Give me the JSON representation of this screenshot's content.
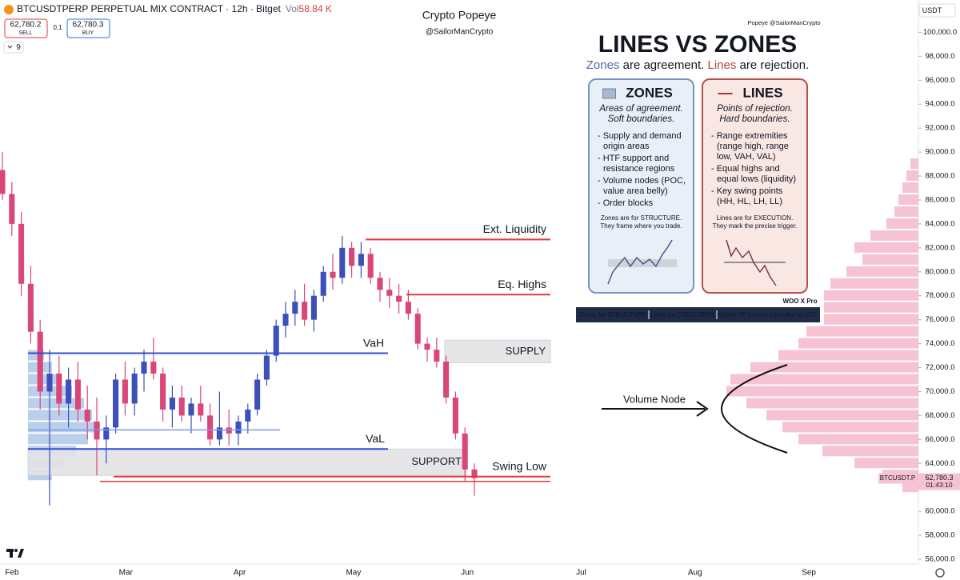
{
  "header": {
    "symbol": "BTCUSDTPERP PERPETUAL MIX CONTRACT · 12h · Bitget",
    "vol_label": "Vol",
    "vol_value": "58.84 K",
    "sell_price": "62,780.2",
    "sell_label": "SELL",
    "spread": "0.1",
    "buy_price": "62,780.3",
    "buy_label": "BUY",
    "indicator_count": "9",
    "currency": "USDT"
  },
  "watermark": {
    "name": "Crypto Popeye",
    "handle": "@SailorManCrypto"
  },
  "annotations": {
    "volume_node": "Volume Node"
  },
  "infographic": {
    "credit": "Popeye @SailorManCrypto",
    "title": "LINES VS ZONES",
    "subtitle": [
      "Zones",
      " are agreement. ",
      "Lines",
      " are rejection."
    ],
    "cards": [
      {
        "title": "ZONES",
        "tagline": [
          "Areas of agreement.",
          "Soft boundaries."
        ],
        "bullets": [
          [
            "- Supply and demand",
            "origin areas"
          ],
          [
            "- HTF support and",
            "resistance regions"
          ],
          [
            "- Volume nodes (POC,",
            "value area belly)"
          ],
          [
            "- Order blocks"
          ]
        ],
        "footer": [
          "Zones are for STRUCTURE.",
          "They frame where you trade."
        ]
      },
      {
        "title": "LINES",
        "tagline": [
          "Points of rejection.",
          "Hard boundaries."
        ],
        "bullets": [
          [
            "- Range extremities",
            "(range high, range",
            "low, VAH, VAL)"
          ],
          [
            "- Equal highs and",
            "equal lows (liquidity)"
          ],
          [
            "- Key swing points",
            "(HH, HL, LH, LL)"
          ]
        ],
        "footer": [
          "Lines are for EXECUTION.",
          "They mark the precise trigger."
        ]
      }
    ],
    "brand": "WOO X Pro",
    "bar": [
      "Zones for STRUCTURE",
      "Lines for EXECUTION",
      "Higher TF = more zone-like on LTF"
    ]
  },
  "chart_data": {
    "type": "candlestick",
    "up_color": "#3d4fb8",
    "down_color": "#d9467a",
    "ylim": [
      55600,
      102700
    ],
    "yticks": [
      {
        "value": 56000,
        "label": "56,000.0"
      },
      {
        "value": 58000,
        "label": "58,000.0"
      },
      {
        "value": 60000,
        "label": "60,000.0"
      },
      {
        "value": 62000,
        "label": "62,000.0"
      },
      {
        "value": 64000,
        "label": "64,000.0"
      },
      {
        "value": 66000,
        "label": "66,000.0"
      },
      {
        "value": 68000,
        "label": "68,000.0"
      },
      {
        "value": 70000,
        "label": "70,000.0"
      },
      {
        "value": 72000,
        "label": "72,000.0"
      },
      {
        "value": 74000,
        "label": "74,000.0"
      },
      {
        "value": 76000,
        "label": "76,000.0"
      },
      {
        "value": 78000,
        "label": "78,000.0"
      },
      {
        "value": 80000,
        "label": "80,000.0"
      },
      {
        "value": 82000,
        "label": "82,000.0"
      },
      {
        "value": 84000,
        "label": "84,000.0"
      },
      {
        "value": 86000,
        "label": "86,000.0"
      },
      {
        "value": 88000,
        "label": "88,000.0"
      },
      {
        "value": 90000,
        "label": "90,000.0"
      },
      {
        "value": 92000,
        "label": "92,000.0"
      },
      {
        "value": 94000,
        "label": "94,000.0"
      },
      {
        "value": 96000,
        "label": "96,000.0"
      },
      {
        "value": 98000,
        "label": "98,000.0"
      },
      {
        "value": 100000,
        "label": "100,000.0"
      }
    ],
    "x_ticks": [
      "Feb",
      "Mar",
      "Apr",
      "May",
      "Jun",
      "Jul",
      "Aug",
      "Sep"
    ],
    "candles": [
      [
        88500,
        90000,
        86000,
        86500
      ],
      [
        86500,
        87500,
        83000,
        84000
      ],
      [
        84000,
        85000,
        78000,
        79000
      ],
      [
        79000,
        80500,
        74000,
        75000
      ],
      [
        75000,
        76000,
        68500,
        70000
      ],
      [
        70000,
        73500,
        60500,
        71500
      ],
      [
        71500,
        73000,
        68000,
        69000
      ],
      [
        69000,
        72000,
        67000,
        71000
      ],
      [
        71000,
        72500,
        67500,
        68500
      ],
      [
        68500,
        70500,
        66000,
        67500
      ],
      [
        67500,
        69500,
        63000,
        66000
      ],
      [
        66000,
        68000,
        64000,
        67000
      ],
      [
        67000,
        71500,
        66500,
        71000
      ],
      [
        71000,
        72500,
        68000,
        69000
      ],
      [
        69000,
        72000,
        68000,
        71500
      ],
      [
        71500,
        73500,
        70000,
        72500
      ],
      [
        72500,
        74500,
        71000,
        71500
      ],
      [
        71500,
        72000,
        67500,
        68500
      ],
      [
        68500,
        70500,
        67000,
        69500
      ],
      [
        69500,
        70500,
        67500,
        68000
      ],
      [
        68000,
        69500,
        66500,
        69000
      ],
      [
        69000,
        70500,
        67500,
        68000
      ],
      [
        68000,
        69000,
        65500,
        66000
      ],
      [
        66000,
        70000,
        65500,
        67000
      ],
      [
        67000,
        68500,
        65500,
        66500
      ],
      [
        66500,
        68000,
        65500,
        67500
      ],
      [
        67500,
        69000,
        66500,
        68500
      ],
      [
        68500,
        71500,
        68000,
        71000
      ],
      [
        71000,
        73500,
        70500,
        73000
      ],
      [
        73000,
        76000,
        72500,
        75500
      ],
      [
        75500,
        77500,
        74500,
        76500
      ],
      [
        76500,
        78500,
        75500,
        77500
      ],
      [
        77500,
        79000,
        75500,
        76000
      ],
      [
        76000,
        78500,
        75000,
        78000
      ],
      [
        78000,
        80500,
        77500,
        80000
      ],
      [
        80000,
        81500,
        78500,
        79500
      ],
      [
        79500,
        83000,
        79000,
        82000
      ],
      [
        82000,
        82500,
        79500,
        80500
      ],
      [
        80500,
        82500,
        79500,
        81500
      ],
      [
        81500,
        82000,
        79000,
        79500
      ],
      [
        79500,
        80000,
        77500,
        78500
      ],
      [
        78500,
        79500,
        77000,
        78000
      ],
      [
        78000,
        79000,
        76500,
        77500
      ],
      [
        77500,
        78500,
        76000,
        76500
      ],
      [
        76500,
        77000,
        73500,
        74000
      ],
      [
        74000,
        74500,
        72500,
        73500
      ],
      [
        73500,
        74500,
        72000,
        72500
      ],
      [
        72500,
        73000,
        69000,
        69500
      ],
      [
        69500,
        70000,
        66000,
        66500
      ],
      [
        66500,
        67000,
        62500,
        63500
      ],
      [
        63500,
        64000,
        61300,
        62780
      ]
    ],
    "levels": [
      {
        "label": "Ext. Liquidity",
        "value": 82700,
        "color": "#e0393a"
      },
      {
        "label": "Eq. Highs",
        "value": 78100,
        "color": "#e0393a"
      },
      {
        "label": "VaH",
        "value": 73200,
        "color": "#2f4fd8"
      },
      {
        "value": 66800,
        "color": "#7b9be6"
      },
      {
        "label": "VaL",
        "value": 65200,
        "color": "#2f4fd8"
      },
      {
        "label": "Swing Low",
        "value": 62900,
        "color": "#e0393a"
      },
      {
        "value": 62500,
        "color": "#e0393a"
      }
    ],
    "zones": [
      {
        "label": "SUPPLY",
        "low": 72400,
        "high": 74300
      },
      {
        "label": "SUPPORT",
        "low": 63000,
        "high": 65200
      }
    ],
    "volume_profiles": [
      {
        "side": "right",
        "color": "#f2a9c0",
        "prices": [
          62000,
          63000,
          64000,
          65000,
          66000,
          67000,
          68000,
          69000,
          70000,
          71000,
          72000,
          73000,
          74000,
          75000,
          76000,
          77000,
          78000,
          79000,
          80000,
          81000,
          82000,
          83000,
          84000,
          85000,
          86000,
          87000,
          88000,
          89000
        ],
        "values": [
          20,
          45,
          80,
          120,
          150,
          170,
          190,
          215,
          240,
          235,
          210,
          175,
          150,
          140,
          170,
          180,
          150,
          110,
          90,
          70,
          80,
          60,
          40,
          30,
          25,
          20,
          15,
          10
        ]
      },
      {
        "side": "left",
        "color": "#9dbbe3",
        "prices": [
          63000,
          64000,
          65000,
          66000,
          67000,
          68000,
          69000,
          70000,
          71000,
          72000,
          73000
        ],
        "values": [
          30,
          45,
          60,
          75,
          90,
          80,
          70,
          55,
          40,
          30,
          20
        ]
      }
    ],
    "last_price": {
      "value": 62780.3,
      "label": "62,780.3"
    },
    "last_symbol": "BTCUSDT.P",
    "countdown": "01:43:10"
  }
}
